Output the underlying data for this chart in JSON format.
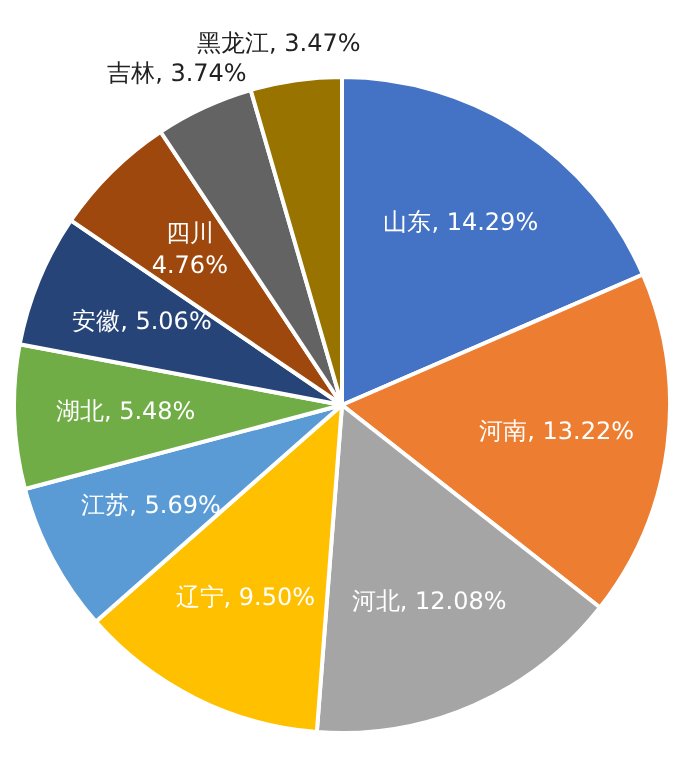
{
  "chart_data": {
    "type": "pie",
    "categories": [
      "山东",
      "河南",
      "河北",
      "辽宁",
      "江苏",
      "湖北",
      "安徽",
      "四川",
      "吉林",
      "黑龙江"
    ],
    "values": [
      14.29,
      13.22,
      12.08,
      9.5,
      5.69,
      5.48,
      5.06,
      4.76,
      3.74,
      3.47
    ],
    "value_labels": [
      "14.29%",
      "13.22%",
      "12.08%",
      "9.50%",
      "5.69%",
      "5.48%",
      "5.06%",
      "4.76%",
      "3.74%",
      "3.47%"
    ],
    "colors": [
      "#4472c4",
      "#ed7d31",
      "#a5a5a5",
      "#ffc000",
      "#5b9bd5",
      "#70ad47",
      "#264478",
      "#9e480e",
      "#636363",
      "#997300"
    ],
    "legend": false
  }
}
